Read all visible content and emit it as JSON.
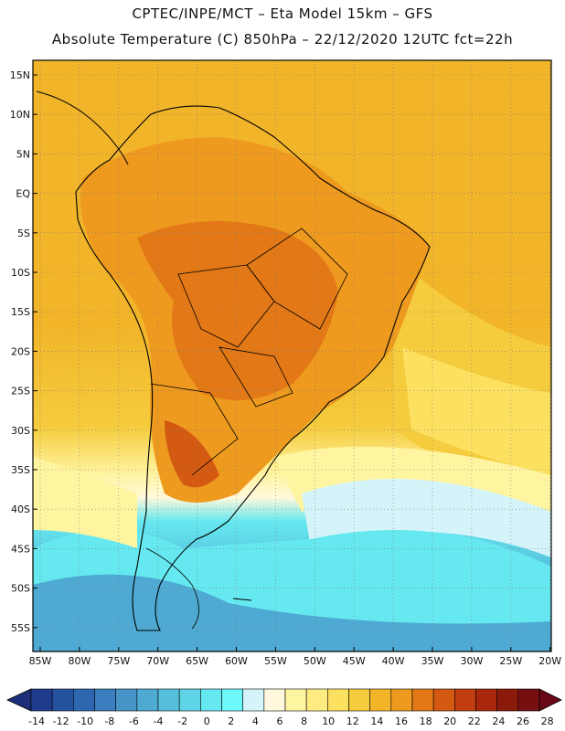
{
  "header": {
    "line1": "CPTEC/INPE/MCT –  Eta Model 15km – GFS",
    "line2": "Absolute Temperature (C) 850hPa – 22/12/2020 12UTC fct=22h"
  },
  "axes": {
    "lat_labels": [
      "15N",
      "10N",
      "5N",
      "EQ",
      "5S",
      "10S",
      "15S",
      "20S",
      "25S",
      "30S",
      "35S",
      "40S",
      "45S",
      "50S",
      "55S"
    ],
    "lon_labels": [
      "85W",
      "80W",
      "75W",
      "70W",
      "65W",
      "60W",
      "55W",
      "50W",
      "45W",
      "40W",
      "35W",
      "30W",
      "25W",
      "20W"
    ]
  },
  "colorbar": {
    "labels": [
      "-14",
      "-12",
      "-10",
      "-8",
      "-6",
      "-4",
      "-2",
      "0",
      "2",
      "4",
      "6",
      "8",
      "10",
      "12",
      "14",
      "16",
      "18",
      "20",
      "22",
      "24",
      "26",
      "28"
    ],
    "colors": [
      "#1f3c8c",
      "#25529e",
      "#2e66b0",
      "#3a7ec0",
      "#4694c8",
      "#4eaad2",
      "#56c0dc",
      "#5ed4e6",
      "#66e8f0",
      "#6ef8fa",
      "#d4f4fa",
      "#fff8dc",
      "#fff4a0",
      "#ffec80",
      "#fce060",
      "#f5cc3e",
      "#f2b52a",
      "#ee9a1e",
      "#e27816",
      "#d45a12",
      "#c03e10",
      "#a8260c",
      "#8c1a0a",
      "#761010"
    ],
    "under_color": "#1c2f78",
    "over_color": "#6a0818"
  },
  "legend_field": {
    "ocean_north": "#f2b52a",
    "ocean_mid": "#f5cc3e",
    "land_warm": "#ee9a1e",
    "land_hot": "#e27816",
    "cool_belt": "#fff4a0",
    "cold_south": "#56c0dc",
    "coast_color": "#000000"
  }
}
